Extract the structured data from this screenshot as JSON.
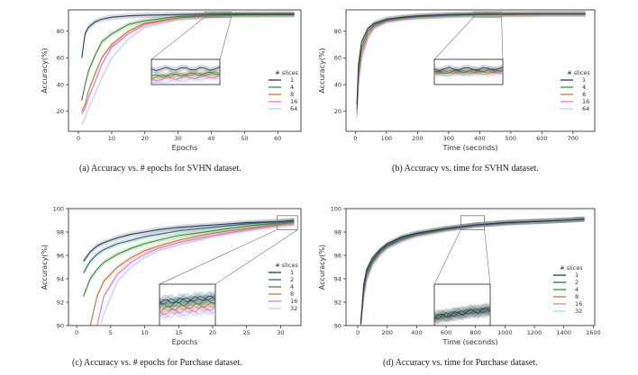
{
  "palette": {
    "1": "#2a3a5a",
    "2": "#2f6e6e",
    "4": "#3e8a3e",
    "8": "#c07a48",
    "16": "#d882c8",
    "32": "#bcd6ee",
    "64": "#bcd6ee"
  },
  "chart_data": [
    {
      "id": "a",
      "type": "line",
      "caption": "(a) Accuracy vs. # epochs for SVHN dataset.",
      "xlabel": "Epochs",
      "ylabel": "Accuracy(%)",
      "xlim": [
        -3,
        67
      ],
      "ylim": [
        5,
        96
      ],
      "xticks": [
        0,
        10,
        20,
        30,
        40,
        50,
        60
      ],
      "yticks": [
        20,
        40,
        60,
        80
      ],
      "legend_title": "# slices",
      "legend_position": "right",
      "inset": true,
      "series": [
        {
          "name": "1",
          "x": [
            1,
            2,
            3,
            5,
            7,
            10,
            15,
            20,
            30,
            40,
            50,
            60,
            65
          ],
          "y": [
            60,
            78,
            83,
            87,
            89,
            90.5,
            91.5,
            92,
            92.5,
            93,
            93,
            93,
            93
          ]
        },
        {
          "name": "4",
          "x": [
            1,
            2,
            3,
            5,
            7,
            10,
            15,
            20,
            30,
            40,
            50,
            60,
            65
          ],
          "y": [
            28,
            40,
            50,
            62,
            72,
            78,
            85,
            88,
            91,
            92,
            92.5,
            92.5,
            92.5
          ]
        },
        {
          "name": "8",
          "x": [
            1,
            2,
            3,
            5,
            7,
            10,
            15,
            20,
            30,
            40,
            50,
            60,
            65
          ],
          "y": [
            20,
            25,
            35,
            48,
            60,
            70,
            80,
            86,
            90,
            92,
            92.5,
            92.5,
            92.5
          ]
        },
        {
          "name": "16",
          "x": [
            1,
            2,
            3,
            5,
            7,
            10,
            15,
            20,
            30,
            40,
            50,
            60,
            65
          ],
          "y": [
            18,
            22,
            30,
            42,
            55,
            68,
            78,
            85,
            90,
            91.5,
            92,
            92.5,
            92.5
          ]
        },
        {
          "name": "64",
          "x": [
            1,
            2,
            3,
            5,
            7,
            10,
            15,
            20,
            30,
            40,
            50,
            60,
            65
          ],
          "y": [
            10,
            15,
            22,
            33,
            45,
            60,
            74,
            83,
            89,
            91,
            92,
            92,
            92
          ]
        }
      ]
    },
    {
      "id": "b",
      "type": "line",
      "caption": "(b) Accuracy vs. time for SVHN dataset.",
      "xlabel": "Time (seconds)",
      "ylabel": "Accuracy(%)",
      "xlim": [
        -30,
        770
      ],
      "ylim": [
        5,
        96
      ],
      "xticks": [
        0,
        100,
        200,
        300,
        400,
        500,
        600,
        700
      ],
      "yticks": [
        20,
        40,
        60,
        80
      ],
      "legend_title": "# slices",
      "legend_position": "right",
      "inset": true,
      "series": [
        {
          "name": "1",
          "x": [
            5,
            10,
            20,
            40,
            60,
            100,
            150,
            200,
            300,
            400,
            500,
            600,
            700,
            740
          ],
          "y": [
            25,
            55,
            72,
            82,
            86,
            89,
            90.5,
            91.5,
            92.5,
            93,
            93,
            93,
            93,
            93
          ]
        },
        {
          "name": "4",
          "x": [
            5,
            10,
            20,
            40,
            60,
            100,
            150,
            200,
            300,
            400,
            500,
            600,
            700,
            740
          ],
          "y": [
            22,
            50,
            68,
            80,
            85,
            88.5,
            90,
            91,
            92,
            92.5,
            93,
            93,
            93,
            93
          ]
        },
        {
          "name": "8",
          "x": [
            5,
            10,
            20,
            40,
            60,
            100,
            150,
            200,
            300,
            400,
            500,
            600,
            700,
            740
          ],
          "y": [
            20,
            45,
            65,
            78,
            84,
            88,
            90,
            91,
            92,
            92.5,
            92.5,
            93,
            93,
            93
          ]
        },
        {
          "name": "16",
          "x": [
            5,
            10,
            20,
            40,
            60,
            100,
            150,
            200,
            300,
            400,
            500,
            600,
            700,
            740
          ],
          "y": [
            18,
            42,
            62,
            76,
            83,
            87.5,
            89.5,
            90.5,
            92,
            92.5,
            92.5,
            93,
            93,
            93
          ]
        },
        {
          "name": "64",
          "x": [
            5,
            10,
            20,
            40,
            60,
            100,
            150,
            200,
            300,
            400,
            500,
            600,
            700,
            740
          ],
          "y": [
            15,
            38,
            58,
            74,
            82,
            87,
            89,
            90.5,
            91.5,
            92,
            92.5,
            92.5,
            92.5,
            92.5
          ]
        }
      ]
    },
    {
      "id": "c",
      "type": "line",
      "caption": "(c) Accuracy vs. # epochs for Purchase dataset.",
      "xlabel": "Epochs",
      "ylabel": "Accuracy(%)",
      "xlim": [
        -1.2,
        33
      ],
      "ylim": [
        90,
        100
      ],
      "xticks": [
        0,
        5,
        10,
        15,
        20,
        25,
        30
      ],
      "yticks": [
        90,
        92,
        94,
        96,
        98,
        100
      ],
      "legend_title": "# slices",
      "legend_position": "right",
      "inset": true,
      "series": [
        {
          "name": "1",
          "x": [
            1,
            2,
            3,
            4,
            6,
            8,
            10,
            12,
            15,
            20,
            25,
            30,
            32
          ],
          "y": [
            95.5,
            96.3,
            96.8,
            97.1,
            97.5,
            97.8,
            98.0,
            98.2,
            98.4,
            98.6,
            98.8,
            98.9,
            99.0
          ]
        },
        {
          "name": "2",
          "x": [
            1,
            2,
            3,
            4,
            6,
            8,
            10,
            12,
            15,
            20,
            25,
            30,
            32
          ],
          "y": [
            94.5,
            95.5,
            96.1,
            96.5,
            97.0,
            97.3,
            97.6,
            97.8,
            98.1,
            98.4,
            98.7,
            98.9,
            99.0
          ]
        },
        {
          "name": "4",
          "x": [
            1,
            2,
            3,
            4,
            6,
            8,
            10,
            12,
            15,
            20,
            25,
            30,
            32
          ],
          "y": [
            92.5,
            94.0,
            94.8,
            95.4,
            96.1,
            96.6,
            97.0,
            97.3,
            97.7,
            98.1,
            98.5,
            98.8,
            98.9
          ]
        },
        {
          "name": "8",
          "x": [
            2,
            3,
            4,
            6,
            8,
            10,
            12,
            15,
            20,
            25,
            30,
            32
          ],
          "y": [
            90.0,
            92.5,
            93.8,
            95.0,
            95.8,
            96.4,
            96.8,
            97.3,
            97.9,
            98.3,
            98.7,
            98.8
          ]
        },
        {
          "name": "16",
          "x": [
            3,
            4,
            6,
            8,
            10,
            12,
            15,
            20,
            25,
            30,
            32
          ],
          "y": [
            90.0,
            92.5,
            94.4,
            95.4,
            96.1,
            96.6,
            97.1,
            97.7,
            98.2,
            98.6,
            98.7
          ]
        },
        {
          "name": "32",
          "x": [
            3.5,
            4,
            6,
            8,
            10,
            12,
            15,
            20,
            25,
            30,
            32
          ],
          "y": [
            90.0,
            91.0,
            93.8,
            95.0,
            95.8,
            96.4,
            96.9,
            97.6,
            98.1,
            98.5,
            98.6
          ]
        }
      ]
    },
    {
      "id": "d",
      "type": "line",
      "caption": "(d) Accuracy vs. time for Purchase dataset.",
      "xlabel": "Time (seconds)",
      "ylabel": "Accuracy(%)",
      "xlim": [
        -80,
        1610
      ],
      "ylim": [
        90,
        100
      ],
      "xticks": [
        0,
        200,
        400,
        600,
        800,
        1000,
        1200,
        1400,
        1600
      ],
      "yticks": [
        90,
        92,
        94,
        96,
        98,
        100
      ],
      "legend_title": "# slices",
      "legend_position": "right",
      "inset": true,
      "series": [
        {
          "name": "1",
          "x": [
            20,
            40,
            60,
            100,
            150,
            200,
            300,
            400,
            600,
            800,
            1000,
            1200,
            1400,
            1540
          ],
          "y": [
            90.2,
            93.5,
            94.8,
            95.8,
            96.5,
            97.0,
            97.6,
            97.9,
            98.3,
            98.6,
            98.8,
            98.9,
            99.0,
            99.1
          ]
        },
        {
          "name": "2",
          "x": [
            20,
            40,
            60,
            100,
            150,
            200,
            300,
            400,
            600,
            800,
            1000,
            1200,
            1400,
            1540
          ],
          "y": [
            90.1,
            93.3,
            94.6,
            95.6,
            96.4,
            96.9,
            97.5,
            97.9,
            98.3,
            98.6,
            98.8,
            98.9,
            99.0,
            99.1
          ]
        },
        {
          "name": "4",
          "x": [
            20,
            40,
            60,
            100,
            150,
            200,
            300,
            400,
            600,
            800,
            1000,
            1200,
            1400,
            1540
          ],
          "y": [
            90.1,
            93.0,
            94.4,
            95.5,
            96.3,
            96.8,
            97.4,
            97.8,
            98.3,
            98.6,
            98.8,
            98.9,
            99.0,
            99.1
          ]
        },
        {
          "name": "8",
          "x": [
            20,
            40,
            60,
            100,
            150,
            200,
            300,
            400,
            600,
            800,
            1000,
            1200,
            1400,
            1540
          ],
          "y": [
            90.0,
            92.8,
            94.2,
            95.4,
            96.2,
            96.8,
            97.4,
            97.8,
            98.2,
            98.6,
            98.8,
            98.9,
            99.0,
            99.1
          ]
        },
        {
          "name": "16",
          "x": [
            20,
            40,
            60,
            100,
            150,
            200,
            300,
            400,
            600,
            800,
            1000,
            1200,
            1400,
            1540
          ],
          "y": [
            90.0,
            92.5,
            94.0,
            95.3,
            96.1,
            96.7,
            97.3,
            97.7,
            98.2,
            98.6,
            98.7,
            98.9,
            99.0,
            99.1
          ]
        },
        {
          "name": "32",
          "x": [
            20,
            40,
            60,
            100,
            150,
            200,
            300,
            400,
            600,
            800,
            1000,
            1200,
            1400,
            1540
          ],
          "y": [
            90.0,
            92.2,
            93.8,
            95.1,
            96.0,
            96.6,
            97.2,
            97.7,
            98.2,
            98.5,
            98.7,
            98.9,
            99.0,
            99.1
          ]
        }
      ]
    }
  ]
}
